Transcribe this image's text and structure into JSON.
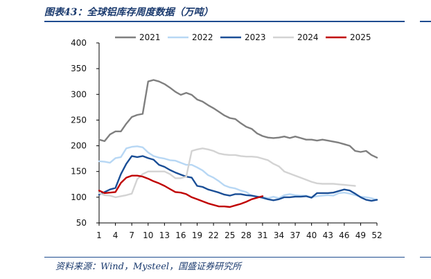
{
  "header": {
    "title": "图表43：全球铝库存周度数据（万吨）"
  },
  "footer": {
    "source": "资料来源：Wind，Mysteel，国盛证券研究所"
  },
  "chart_data": {
    "type": "line",
    "title": "图表43：全球铝库存周度数据（万吨）",
    "xlabel": "",
    "ylabel": "",
    "xlim": [
      1,
      52
    ],
    "ylim": [
      50,
      400
    ],
    "x_ticks": [
      1,
      4,
      7,
      10,
      13,
      16,
      19,
      22,
      25,
      28,
      31,
      34,
      37,
      40,
      43,
      46,
      49,
      52
    ],
    "y_ticks": [
      50,
      100,
      150,
      200,
      250,
      300,
      350,
      400
    ],
    "grid": false,
    "legend_position": "top",
    "series": [
      {
        "name": "2021",
        "color": "#7f7f7f",
        "values": [
          212,
          209,
          222,
          228,
          228,
          243,
          256,
          260,
          262,
          325,
          328,
          325,
          320,
          313,
          305,
          299,
          303,
          299,
          290,
          286,
          279,
          273,
          266,
          259,
          254,
          252,
          244,
          237,
          233,
          224,
          219,
          216,
          215,
          216,
          218,
          215,
          218,
          215,
          212,
          212,
          210,
          212,
          210,
          208,
          206,
          203,
          200,
          190,
          188,
          190,
          182,
          177
        ]
      },
      {
        "name": "2022",
        "color": "#b7d7f4",
        "values": [
          170,
          169,
          167,
          176,
          178,
          195,
          198,
          199,
          197,
          187,
          180,
          177,
          175,
          172,
          171,
          167,
          163,
          163,
          158,
          152,
          143,
          138,
          131,
          123,
          119,
          117,
          113,
          110,
          103,
          101,
          101,
          98,
          101,
          98,
          104,
          106,
          104,
          103,
          103,
          100,
          102,
          103,
          104,
          103,
          108,
          109,
          107,
          104,
          101,
          100,
          98,
          95
        ]
      },
      {
        "name": "2023",
        "color": "#1a4e96",
        "values": [
          105,
          110,
          115,
          118,
          145,
          165,
          180,
          178,
          180,
          176,
          173,
          163,
          159,
          153,
          148,
          144,
          140,
          138,
          122,
          120,
          115,
          112,
          109,
          105,
          103,
          106,
          106,
          104,
          103,
          101,
          99,
          96,
          94,
          96,
          100,
          100,
          101,
          101,
          102,
          99,
          108,
          108,
          108,
          109,
          112,
          115,
          113,
          107,
          100,
          95,
          93,
          95
        ]
      },
      {
        "name": "2024",
        "color": "#d3d3d3",
        "values": [
          108,
          104,
          103,
          100,
          102,
          104,
          107,
          135,
          145,
          150,
          150,
          150,
          150,
          145,
          137,
          137,
          140,
          190,
          193,
          195,
          193,
          190,
          185,
          183,
          182,
          182,
          180,
          179,
          179,
          178,
          175,
          172,
          165,
          160,
          150,
          146,
          142,
          138,
          134,
          130,
          127,
          126,
          126,
          126,
          125,
          124,
          123,
          122,
          null,
          null,
          null,
          null
        ]
      },
      {
        "name": "2025",
        "color": "#c00000",
        "values": [
          113,
          108,
          109,
          110,
          128,
          138,
          142,
          142,
          140,
          136,
          131,
          127,
          122,
          116,
          110,
          109,
          106,
          100,
          96,
          92,
          88,
          85,
          82,
          82,
          81,
          84,
          87,
          91,
          96,
          99,
          102,
          null,
          null,
          null,
          null,
          null,
          null,
          null,
          null,
          null,
          null,
          null,
          null,
          null,
          null,
          null,
          null,
          null,
          null,
          null,
          null,
          null
        ]
      }
    ]
  }
}
